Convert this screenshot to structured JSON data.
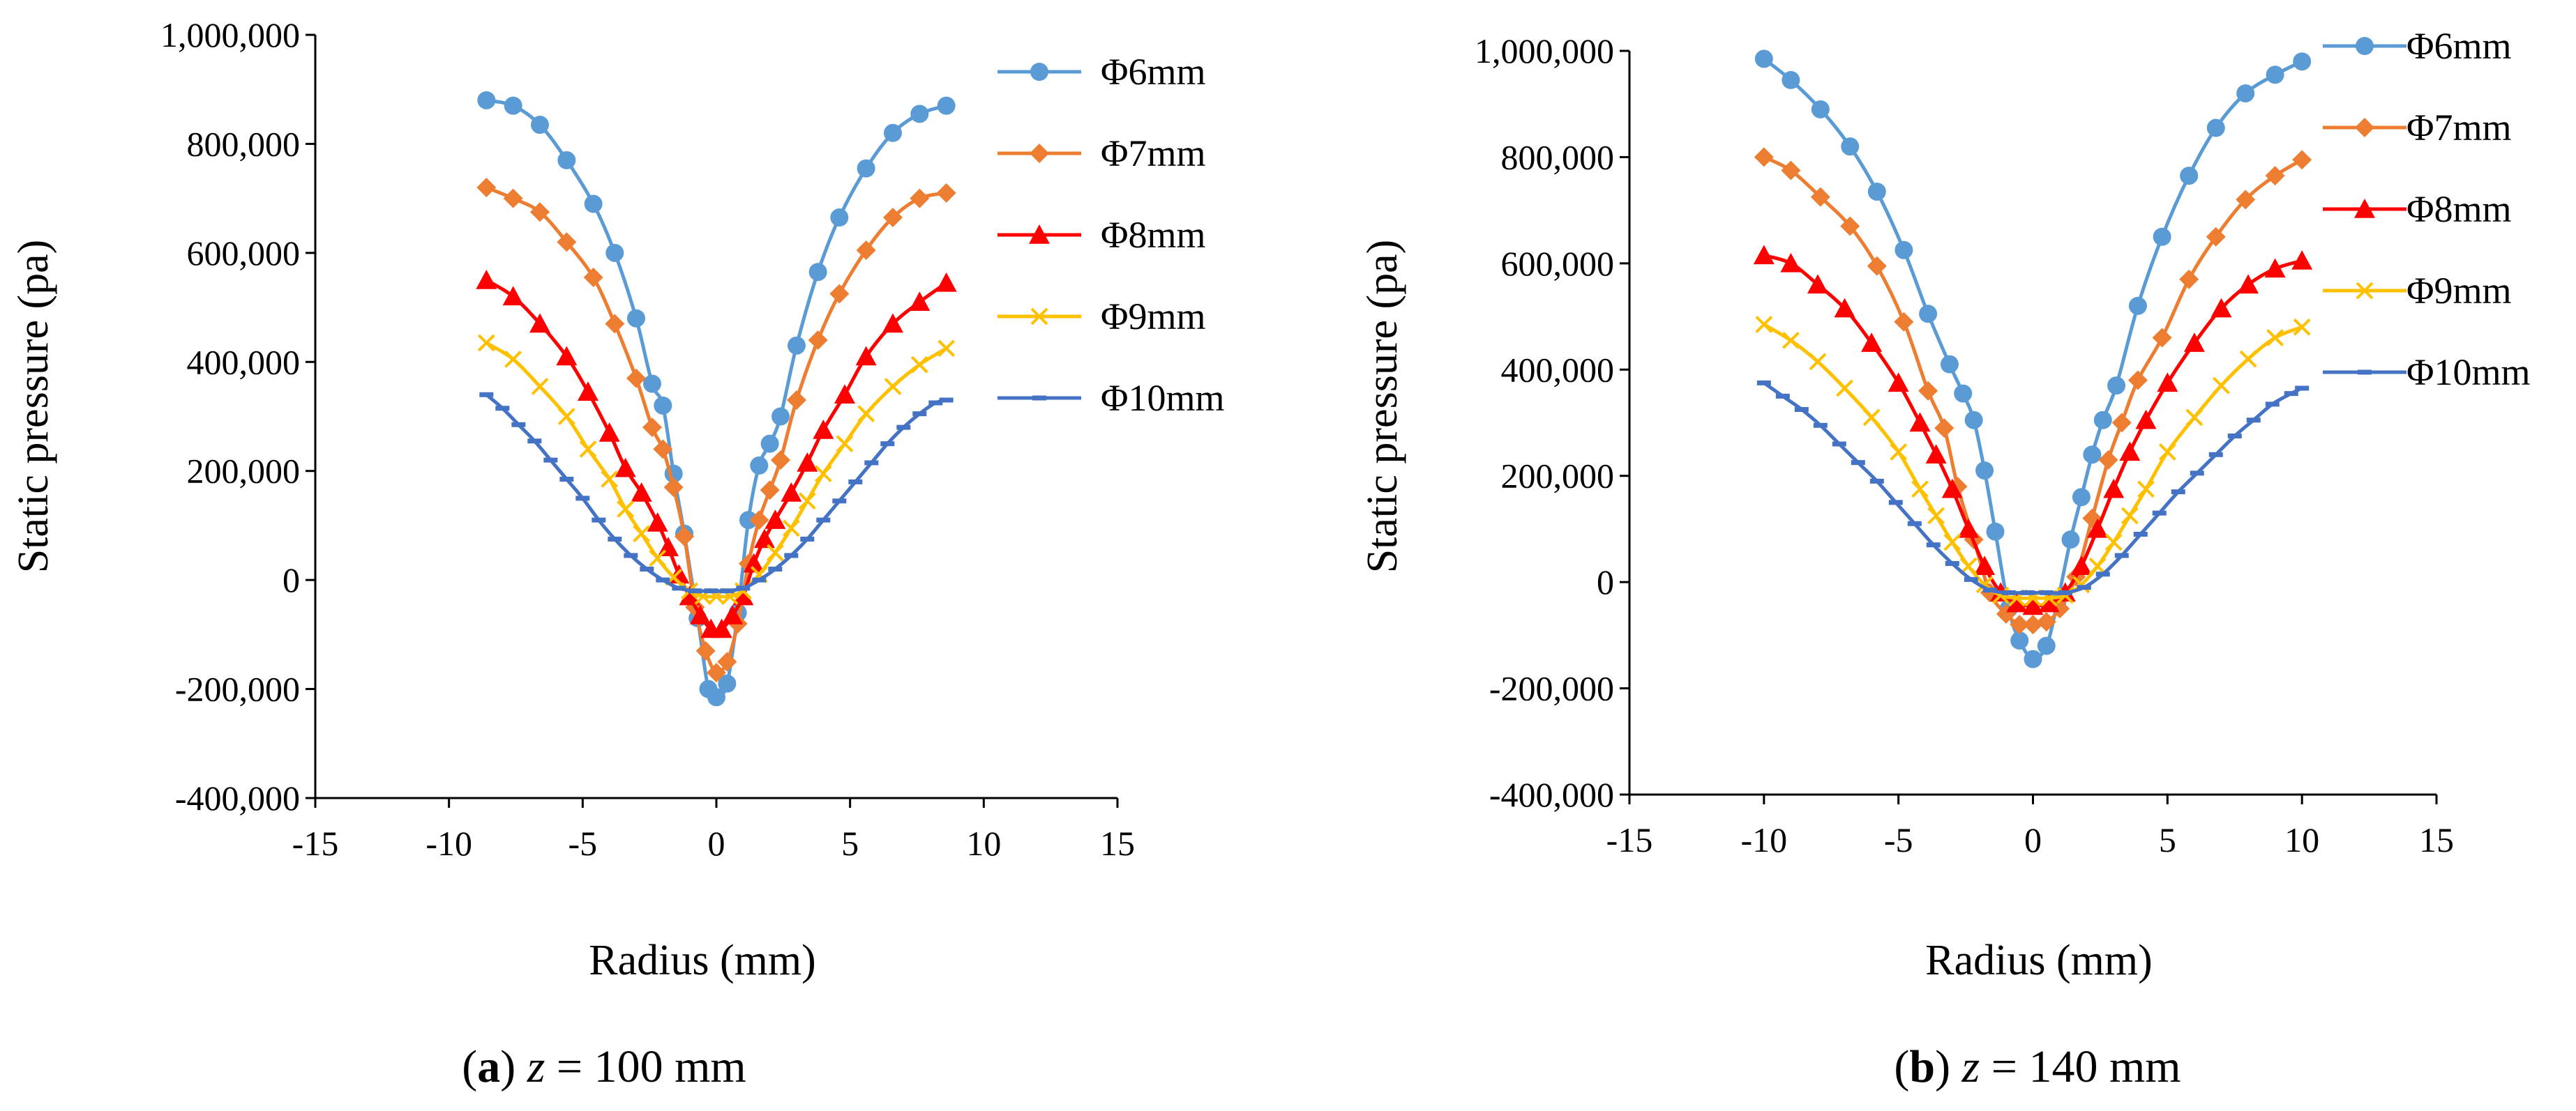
{
  "chart_data": [
    {
      "type": "line",
      "caption": {
        "letter": "a",
        "variable": "z",
        "rest": " = 100 mm"
      },
      "xlabel": "Radius (mm)",
      "ylabel": "Static pressure (pa)",
      "xlim": [
        -15,
        15
      ],
      "ylim": [
        -400000,
        1000000
      ],
      "xticks": [
        -15,
        -10,
        -5,
        0,
        5,
        10,
        15
      ],
      "yticks": [
        -400000,
        -200000,
        0,
        200000,
        400000,
        600000,
        800000,
        1000000
      ],
      "xtick_labels": [
        "-15",
        "-10",
        "-5",
        "0",
        "5",
        "10",
        "15"
      ],
      "ytick_labels": [
        "-400,000",
        "-200,000",
        "0",
        "200,000",
        "400,000",
        "600,000",
        "800,000",
        "1,000,000"
      ],
      "grid": false,
      "legend": "right",
      "series": [
        {
          "name": "Φ6mm",
          "color": "#5B9BD5",
          "marker": "circle",
          "x": [
            -8.6,
            -7.6,
            -6.6,
            -5.6,
            -4.6,
            -3.8,
            -3.0,
            -2.4,
            -2.0,
            -1.6,
            -1.2,
            -0.7,
            -0.3,
            0.0,
            0.4,
            0.8,
            1.2,
            1.6,
            2.0,
            2.4,
            3.0,
            3.8,
            4.6,
            5.6,
            6.6,
            7.6,
            8.6
          ],
          "y": [
            880000,
            870000,
            835000,
            770000,
            690000,
            600000,
            480000,
            360000,
            320000,
            195000,
            85000,
            -70000,
            -200000,
            -215000,
            -190000,
            -60000,
            110000,
            210000,
            250000,
            300000,
            430000,
            565000,
            665000,
            755000,
            820000,
            855000,
            870000
          ]
        },
        {
          "name": "Φ7mm",
          "color": "#ED7D31",
          "marker": "diamond",
          "x": [
            -8.6,
            -7.6,
            -6.6,
            -5.6,
            -4.6,
            -3.8,
            -3.0,
            -2.4,
            -2.0,
            -1.6,
            -1.2,
            -0.8,
            -0.4,
            0.0,
            0.4,
            0.8,
            1.2,
            1.6,
            2.0,
            2.4,
            3.0,
            3.8,
            4.6,
            5.6,
            6.6,
            7.6,
            8.6
          ],
          "y": [
            720000,
            700000,
            675000,
            620000,
            555000,
            470000,
            370000,
            280000,
            240000,
            170000,
            80000,
            -50000,
            -130000,
            -170000,
            -150000,
            -80000,
            30000,
            110000,
            165000,
            220000,
            330000,
            440000,
            525000,
            605000,
            665000,
            700000,
            710000
          ]
        },
        {
          "name": "Φ8mm",
          "color": "#FF0000",
          "marker": "triangle",
          "x": [
            -8.6,
            -7.6,
            -6.6,
            -5.6,
            -4.8,
            -4.0,
            -3.4,
            -2.8,
            -2.2,
            -1.8,
            -1.4,
            -1.0,
            -0.6,
            -0.2,
            0.2,
            0.6,
            1.0,
            1.4,
            1.8,
            2.2,
            2.8,
            3.4,
            4.0,
            4.8,
            5.6,
            6.6,
            7.6,
            8.6
          ],
          "y": [
            550000,
            520000,
            470000,
            410000,
            345000,
            270000,
            205000,
            160000,
            105000,
            60000,
            10000,
            -30000,
            -65000,
            -90000,
            -90000,
            -65000,
            -30000,
            30000,
            75000,
            110000,
            160000,
            215000,
            275000,
            340000,
            410000,
            470000,
            510000,
            545000
          ]
        },
        {
          "name": "Φ9mm",
          "color": "#FFC000",
          "marker": "x",
          "x": [
            -8.6,
            -7.6,
            -6.6,
            -5.6,
            -4.8,
            -4.0,
            -3.4,
            -2.8,
            -2.2,
            -1.6,
            -1.0,
            -0.5,
            0.0,
            0.5,
            1.0,
            1.6,
            2.2,
            2.8,
            3.4,
            4.0,
            4.8,
            5.6,
            6.6,
            7.6,
            8.6
          ],
          "y": [
            435000,
            405000,
            355000,
            300000,
            240000,
            185000,
            130000,
            85000,
            40000,
            5000,
            -20000,
            -30000,
            -30000,
            -30000,
            -20000,
            10000,
            50000,
            95000,
            145000,
            195000,
            250000,
            305000,
            355000,
            395000,
            425000
          ]
        },
        {
          "name": "Φ10mm",
          "color": "#4472C4",
          "marker": "dash",
          "x": [
            -8.6,
            -8.0,
            -7.4,
            -6.8,
            -6.2,
            -5.6,
            -5.0,
            -4.4,
            -3.8,
            -3.2,
            -2.6,
            -2.0,
            -1.4,
            -0.8,
            -0.2,
            0.4,
            1.0,
            1.6,
            2.2,
            2.8,
            3.4,
            4.0,
            4.6,
            5.2,
            5.8,
            6.4,
            7.0,
            7.6,
            8.2,
            8.6
          ],
          "y": [
            340000,
            315000,
            285000,
            255000,
            220000,
            185000,
            150000,
            110000,
            75000,
            45000,
            20000,
            0,
            -15000,
            -20000,
            -20000,
            -20000,
            -15000,
            0,
            20000,
            45000,
            75000,
            110000,
            145000,
            180000,
            215000,
            250000,
            280000,
            305000,
            325000,
            330000
          ]
        }
      ]
    },
    {
      "type": "line",
      "caption": {
        "letter": "b",
        "variable": "z",
        "rest": " = 140 mm"
      },
      "xlabel": "Radius (mm)",
      "ylabel": "Static pressure (pa)",
      "xlim": [
        -15,
        15
      ],
      "ylim": [
        -400000,
        1000000
      ],
      "xticks": [
        -15,
        -10,
        -5,
        0,
        5,
        10,
        15
      ],
      "yticks": [
        -400000,
        -200000,
        0,
        200000,
        400000,
        600000,
        800000,
        1000000
      ],
      "xtick_labels": [
        "-15",
        "-10",
        "-5",
        "0",
        "5",
        "10",
        "15"
      ],
      "ytick_labels": [
        "-400,000",
        "-200,000",
        "0",
        "200,000",
        "400,000",
        "600,000",
        "800,000",
        "1,000,000"
      ],
      "grid": false,
      "legend": "right",
      "series": [
        {
          "name": "Φ6mm",
          "color": "#5B9BD5",
          "marker": "circle",
          "x": [
            -10.0,
            -9.0,
            -7.9,
            -6.8,
            -5.8,
            -4.8,
            -3.9,
            -3.1,
            -2.6,
            -2.2,
            -1.8,
            -1.4,
            -0.9,
            -0.5,
            0.0,
            0.5,
            0.9,
            1.4,
            1.8,
            2.2,
            2.6,
            3.1,
            3.9,
            4.8,
            5.8,
            6.8,
            7.9,
            9.0,
            10.0
          ],
          "y": [
            985000,
            945000,
            890000,
            820000,
            735000,
            625000,
            505000,
            410000,
            355000,
            305000,
            210000,
            95000,
            -50000,
            -110000,
            -145000,
            -120000,
            -40000,
            80000,
            160000,
            240000,
            305000,
            370000,
            520000,
            650000,
            765000,
            855000,
            920000,
            955000,
            980000
          ]
        },
        {
          "name": "Φ7mm",
          "color": "#ED7D31",
          "marker": "diamond",
          "x": [
            -10.0,
            -9.0,
            -7.9,
            -6.8,
            -5.8,
            -4.8,
            -3.9,
            -3.3,
            -2.8,
            -2.2,
            -1.6,
            -1.0,
            -0.5,
            0.0,
            0.5,
            1.0,
            1.6,
            2.2,
            2.8,
            3.3,
            3.9,
            4.8,
            5.8,
            6.8,
            7.9,
            9.0,
            10.0
          ],
          "y": [
            800000,
            775000,
            725000,
            670000,
            595000,
            490000,
            360000,
            290000,
            180000,
            80000,
            -20000,
            -60000,
            -80000,
            -80000,
            -75000,
            -50000,
            10000,
            120000,
            230000,
            300000,
            380000,
            460000,
            570000,
            650000,
            720000,
            765000,
            795000
          ]
        },
        {
          "name": "Φ8mm",
          "color": "#FF0000",
          "marker": "triangle",
          "x": [
            -10.0,
            -9.0,
            -8.0,
            -7.0,
            -6.0,
            -5.0,
            -4.2,
            -3.6,
            -3.0,
            -2.4,
            -1.8,
            -1.2,
            -0.6,
            0.0,
            0.6,
            1.2,
            1.8,
            2.4,
            3.0,
            3.6,
            4.2,
            5.0,
            6.0,
            7.0,
            8.0,
            9.0,
            10.0
          ],
          "y": [
            615000,
            600000,
            560000,
            515000,
            450000,
            375000,
            300000,
            240000,
            175000,
            100000,
            30000,
            -20000,
            -40000,
            -45000,
            -40000,
            -20000,
            30000,
            100000,
            175000,
            245000,
            305000,
            375000,
            450000,
            515000,
            560000,
            590000,
            605000
          ]
        },
        {
          "name": "Φ9mm",
          "color": "#FFC000",
          "marker": "x",
          "x": [
            -10.0,
            -9.0,
            -8.0,
            -7.0,
            -6.0,
            -5.0,
            -4.2,
            -3.6,
            -3.0,
            -2.4,
            -1.8,
            -1.2,
            -0.6,
            0.0,
            0.6,
            1.2,
            1.8,
            2.4,
            3.0,
            3.6,
            4.2,
            5.0,
            6.0,
            7.0,
            8.0,
            9.0,
            10.0
          ],
          "y": [
            485000,
            455000,
            415000,
            365000,
            310000,
            245000,
            175000,
            125000,
            75000,
            30000,
            -5000,
            -25000,
            -30000,
            -30000,
            -30000,
            -25000,
            -5000,
            30000,
            75000,
            125000,
            175000,
            245000,
            310000,
            370000,
            420000,
            460000,
            480000
          ]
        },
        {
          "name": "Φ10mm",
          "color": "#4472C4",
          "marker": "dash",
          "x": [
            -10.0,
            -9.3,
            -8.6,
            -7.9,
            -7.2,
            -6.5,
            -5.8,
            -5.1,
            -4.4,
            -3.7,
            -3.0,
            -2.3,
            -1.6,
            -0.9,
            -0.2,
            0.5,
            1.2,
            1.9,
            2.6,
            3.3,
            4.0,
            4.7,
            5.4,
            6.1,
            6.8,
            7.5,
            8.2,
            8.9,
            9.6,
            10.0
          ],
          "y": [
            375000,
            350000,
            325000,
            295000,
            260000,
            225000,
            190000,
            150000,
            110000,
            70000,
            35000,
            5000,
            -15000,
            -20000,
            -20000,
            -20000,
            -20000,
            -10000,
            15000,
            50000,
            90000,
            130000,
            170000,
            205000,
            240000,
            275000,
            305000,
            335000,
            355000,
            365000
          ]
        }
      ]
    }
  ]
}
